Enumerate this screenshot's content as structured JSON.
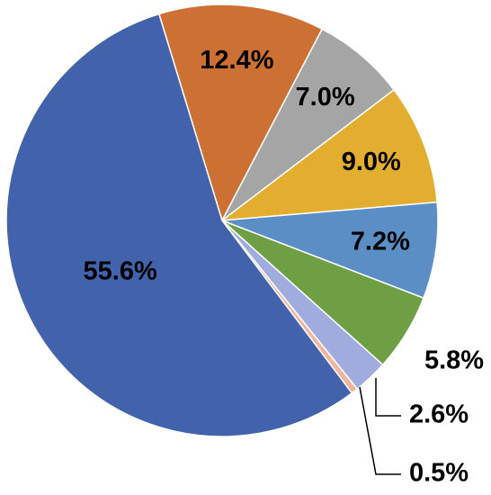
{
  "chart_data": {
    "type": "pie",
    "values": [
      12.4,
      7.0,
      9.0,
      7.2,
      5.8,
      2.6,
      0.5,
      55.6
    ],
    "value_labels": [
      "12.4%",
      "7.0%",
      "9.0%",
      "7.2%",
      "5.8%",
      "2.6%",
      "0.5%",
      "55.6%"
    ],
    "colors": [
      "#cc7033",
      "#a5a5a5",
      "#e3ae2f",
      "#5b8ec5",
      "#6f9f45",
      "#a1acde",
      "#f2b49c",
      "#4263ab"
    ]
  }
}
